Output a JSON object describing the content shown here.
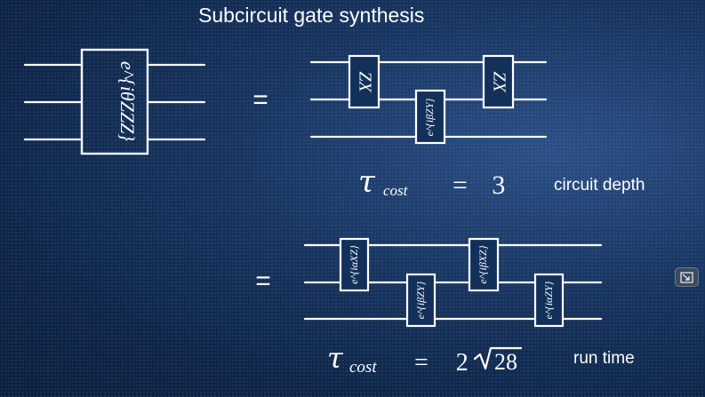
{
  "title": "Subcircuit gate synthesis",
  "left_gate": {
    "label": "e^{iθZZZ}"
  },
  "equals_sign": "=",
  "circuit_depth": {
    "gates": [
      "ZX",
      "e^{iβZY}",
      "ZX"
    ],
    "cost_symbol": "τ",
    "cost_subscript": "cost",
    "cost_value": "= 3",
    "label": "circuit depth"
  },
  "run_time": {
    "gates": [
      "e^{iαXZ}",
      "e^{iβZY}",
      "e^{iβXZ}",
      "e^{iαZY}"
    ],
    "cost_symbol": "τ",
    "cost_subscript": "cost",
    "cost_value": "= 2",
    "cost_radicand": "28",
    "label": "run time"
  },
  "corner_button": {
    "icon": "shrink-window-icon"
  }
}
